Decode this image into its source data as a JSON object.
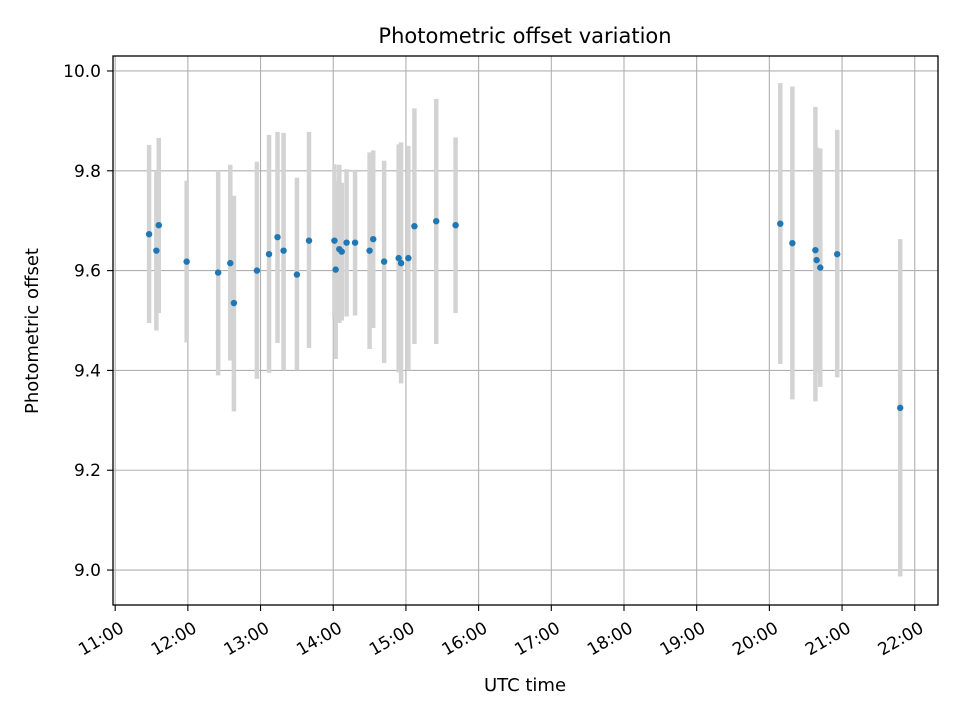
{
  "chart_data": {
    "type": "scatter",
    "title": "Photometric offset variation",
    "xlabel": "UTC time",
    "ylabel": "Photometric offset",
    "x_unit": "hours UTC",
    "xlim": [
      10.97,
      22.32
    ],
    "ylim": [
      8.93,
      10.03
    ],
    "xticks": [
      "11:00",
      "12:00",
      "13:00",
      "14:00",
      "15:00",
      "16:00",
      "17:00",
      "18:00",
      "19:00",
      "20:00",
      "21:00",
      "22:00"
    ],
    "xtick_values": [
      11,
      12,
      13,
      14,
      15,
      16,
      17,
      18,
      19,
      20,
      21,
      22
    ],
    "yticks": [
      "9.0",
      "9.2",
      "9.4",
      "9.6",
      "9.8",
      "10.0"
    ],
    "ytick_values": [
      9.0,
      9.2,
      9.4,
      9.6,
      9.8,
      10.0
    ],
    "grid": true,
    "colors": {
      "point": "#1f77b4",
      "errorbar": "#d3d3d3",
      "grid": "#b0b0b0"
    },
    "points": [
      {
        "time": "11:28",
        "value": 9.673,
        "low": 9.495,
        "high": 9.852
      },
      {
        "time": "11:34",
        "value": 9.64,
        "low": 9.48,
        "high": 9.8
      },
      {
        "time": "11:36",
        "value": 9.691,
        "low": 9.515,
        "high": 9.866
      },
      {
        "time": "11:59",
        "value": 9.618,
        "low": 9.456,
        "high": 9.78
      },
      {
        "time": "12:25",
        "value": 9.596,
        "low": 9.39,
        "high": 9.8
      },
      {
        "time": "12:35",
        "value": 9.615,
        "low": 9.42,
        "high": 9.812
      },
      {
        "time": "12:38",
        "value": 9.535,
        "low": 9.318,
        "high": 9.75
      },
      {
        "time": "12:57",
        "value": 9.6,
        "low": 9.383,
        "high": 9.818
      },
      {
        "time": "13:07",
        "value": 9.633,
        "low": 9.395,
        "high": 9.872
      },
      {
        "time": "13:14",
        "value": 9.667,
        "low": 9.455,
        "high": 9.878
      },
      {
        "time": "13:19",
        "value": 9.64,
        "low": 9.4,
        "high": 9.876
      },
      {
        "time": "13:30",
        "value": 9.592,
        "low": 9.4,
        "high": 9.786
      },
      {
        "time": "13:40",
        "value": 9.66,
        "low": 9.445,
        "high": 9.878
      },
      {
        "time": "14:01",
        "value": 9.66,
        "low": 9.505,
        "high": 9.813
      },
      {
        "time": "14:02",
        "value": 9.602,
        "low": 9.423,
        "high": 9.78
      },
      {
        "time": "14:05",
        "value": 9.643,
        "low": 9.495,
        "high": 9.812
      },
      {
        "time": "14:07",
        "value": 9.638,
        "low": 9.5,
        "high": 9.776
      },
      {
        "time": "14:11",
        "value": 9.656,
        "low": 9.508,
        "high": 9.803
      },
      {
        "time": "14:18",
        "value": 9.656,
        "low": 9.51,
        "high": 9.802
      },
      {
        "time": "14:30",
        "value": 9.64,
        "low": 9.443,
        "high": 9.837
      },
      {
        "time": "14:33",
        "value": 9.663,
        "low": 9.485,
        "high": 9.841
      },
      {
        "time": "14:42",
        "value": 9.618,
        "low": 9.415,
        "high": 9.82
      },
      {
        "time": "14:54",
        "value": 9.625,
        "low": 9.396,
        "high": 9.853
      },
      {
        "time": "14:56",
        "value": 9.615,
        "low": 9.374,
        "high": 9.857
      },
      {
        "time": "15:02",
        "value": 9.625,
        "low": 9.4,
        "high": 9.85
      },
      {
        "time": "15:07",
        "value": 9.689,
        "low": 9.453,
        "high": 9.925
      },
      {
        "time": "15:25",
        "value": 9.699,
        "low": 9.453,
        "high": 9.944
      },
      {
        "time": "15:41",
        "value": 9.691,
        "low": 9.515,
        "high": 9.867
      },
      {
        "time": "20:09",
        "value": 9.694,
        "low": 9.413,
        "high": 9.976
      },
      {
        "time": "20:19",
        "value": 9.655,
        "low": 9.342,
        "high": 9.969
      },
      {
        "time": "20:38",
        "value": 9.641,
        "low": 9.338,
        "high": 9.928
      },
      {
        "time": "20:39",
        "value": 9.621,
        "low": 9.395,
        "high": 9.847
      },
      {
        "time": "20:42",
        "value": 9.606,
        "low": 9.367,
        "high": 9.845
      },
      {
        "time": "20:56",
        "value": 9.633,
        "low": 9.386,
        "high": 9.882
      },
      {
        "time": "21:48",
        "value": 9.325,
        "low": 8.987,
        "high": 9.663
      }
    ]
  }
}
